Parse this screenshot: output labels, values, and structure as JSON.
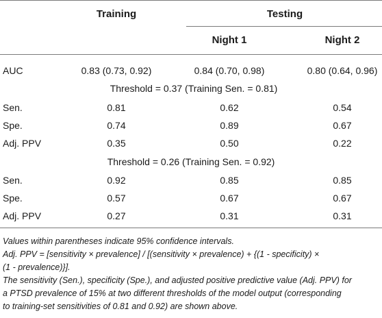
{
  "header": {
    "training": "Training",
    "testing": "Testing",
    "night1": "Night 1",
    "night2": "Night 2"
  },
  "rows": {
    "auc": {
      "label": "AUC",
      "training": "0.83 (0.73, 0.92)",
      "night1": "0.84 (0.70, 0.98)",
      "night2": "0.80 (0.64, 0.96)"
    },
    "threshold1": "Threshold = 0.37 (Training Sen. = 0.81)",
    "t1_sen": {
      "label": "Sen.",
      "training": "0.81",
      "night1": "0.62",
      "night2": "0.54"
    },
    "t1_spe": {
      "label": "Spe.",
      "training": "0.74",
      "night1": "0.89",
      "night2": "0.67"
    },
    "t1_ppv": {
      "label": "Adj. PPV",
      "training": "0.35",
      "night1": "0.50",
      "night2": "0.22"
    },
    "threshold2": "Threshold = 0.26 (Training Sen. = 0.92)",
    "t2_sen": {
      "label": "Sen.",
      "training": "0.92",
      "night1": "0.85",
      "night2": "0.85"
    },
    "t2_spe": {
      "label": "Spe.",
      "training": "0.57",
      "night1": "0.67",
      "night2": "0.67"
    },
    "t2_ppv": {
      "label": "Adj. PPV",
      "training": "0.27",
      "night1": "0.31",
      "night2": "0.31"
    }
  },
  "notes": {
    "n1": "Values within parentheses indicate 95% confidence intervals.",
    "n2a": "Adj. PPV = [sensitivity × prevalence] / [(sensitivity × prevalence) + {(1 - specificity) ×",
    "n2b": "(1 - prevalence)}].",
    "n3a": "The sensitivity (Sen.), specificity (Spe.), and adjusted positive predictive value (Adj. PPV) for",
    "n3b": "a PTSD prevalence of 15% at two different thresholds of the model output (corresponding",
    "n3c": "to training-set sensitivities of 0.81 and 0.92) are shown above."
  }
}
